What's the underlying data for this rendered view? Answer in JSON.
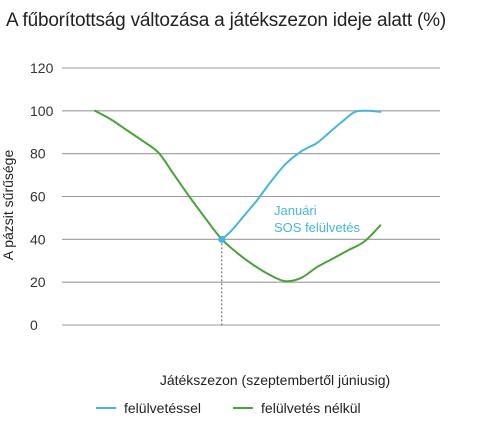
{
  "chart_data": {
    "type": "line",
    "title": "A fűborítottság változása a játékszezon ideje alatt (%)",
    "xlabel": "Játékszezon (szeptembertől júniusig)",
    "ylabel": "A pázsit sűrűsége",
    "ylim": [
      0,
      120
    ],
    "yticks": [
      0,
      20,
      40,
      60,
      80,
      100,
      120
    ],
    "xlim": [
      0,
      10
    ],
    "grid": true,
    "legend_position": "bottom",
    "colors": {
      "with_overseeding": "#45b6e0",
      "without_overseeding": "#4ba23a",
      "marker_line": "#555555"
    },
    "series": [
      {
        "name": "felülvetéssel",
        "color": "#45b6e0",
        "x": [
          4.0,
          4.3,
          4.7,
          5.1,
          5.5,
          6.0,
          6.5,
          7.0,
          7.4,
          7.8,
          8.2,
          8.6,
          9.0
        ],
        "y": [
          40,
          44,
          51,
          58,
          66,
          75,
          81,
          85,
          90,
          95,
          99.5,
          100,
          99.5
        ]
      },
      {
        "name": "felülvetés nélkül",
        "color": "#4ba23a",
        "x": [
          0,
          0.5,
          1,
          1.5,
          2,
          2.5,
          3,
          3.5,
          4,
          4.5,
          5,
          5.5,
          6,
          6.5,
          7,
          7.5,
          8,
          8.5,
          9
        ],
        "y": [
          100,
          96,
          91,
          86,
          80.5,
          70,
          59.5,
          49.5,
          40,
          33.5,
          28,
          23.5,
          20.5,
          22,
          27,
          31,
          35,
          39,
          46.5
        ]
      }
    ],
    "annotations": [
      {
        "text_lines": [
          "Januári",
          "SOS felülvetés"
        ],
        "x": 4.0,
        "y": 40
      }
    ]
  }
}
